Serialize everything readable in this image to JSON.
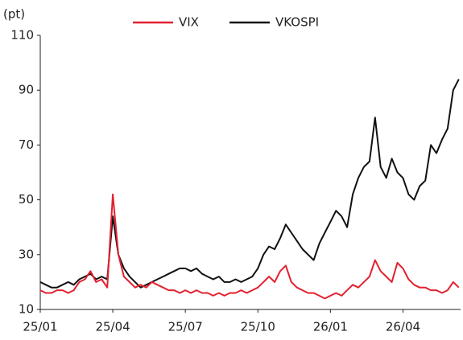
{
  "chart_data": {
    "type": "line",
    "y_unit": "(pt)",
    "categories": [
      "25/01",
      null,
      null,
      null,
      null,
      null,
      null,
      null,
      null,
      null,
      null,
      null,
      null,
      "25/04",
      null,
      null,
      null,
      null,
      null,
      null,
      null,
      null,
      null,
      null,
      null,
      null,
      "25/07",
      null,
      null,
      null,
      null,
      null,
      null,
      null,
      null,
      null,
      null,
      null,
      null,
      "25/10",
      null,
      null,
      null,
      null,
      null,
      null,
      null,
      null,
      null,
      null,
      null,
      null,
      "26/01",
      null,
      null,
      null,
      null,
      null,
      null,
      null,
      null,
      null,
      null,
      null,
      null,
      "26/04",
      null,
      null,
      null,
      null,
      null,
      null,
      null,
      null,
      null,
      null
    ],
    "series": [
      {
        "name": "VIX",
        "color": "#e3202f",
        "values": [
          17,
          16,
          16,
          17,
          17,
          16,
          17,
          20,
          21,
          24,
          20,
          21,
          18,
          52,
          30,
          22,
          20,
          18,
          19,
          18,
          20,
          19,
          18,
          17,
          17,
          16,
          17,
          16,
          17,
          16,
          16,
          15,
          16,
          15,
          16,
          16,
          17,
          16,
          17,
          18,
          20,
          22,
          20,
          24,
          26,
          20,
          18,
          17,
          16,
          16,
          15,
          14,
          15,
          16,
          15,
          17,
          19,
          18,
          20,
          22,
          28,
          24,
          22,
          20,
          27,
          25,
          21,
          19,
          18,
          18,
          17,
          17,
          16,
          17,
          20,
          18
        ]
      },
      {
        "name": "VKOSPI",
        "color": "#111111",
        "values": [
          20,
          19,
          18,
          18,
          19,
          20,
          19,
          21,
          22,
          23,
          21,
          22,
          21,
          44,
          30,
          25,
          22,
          20,
          18,
          19,
          20,
          21,
          22,
          23,
          24,
          25,
          25,
          24,
          25,
          23,
          22,
          21,
          22,
          20,
          20,
          21,
          20,
          21,
          22,
          25,
          30,
          33,
          32,
          36,
          41,
          38,
          35,
          32,
          30,
          28,
          34,
          38,
          42,
          46,
          44,
          40,
          52,
          58,
          62,
          64,
          80,
          62,
          58,
          65,
          60,
          58,
          52,
          50,
          55,
          57,
          70,
          67,
          72,
          76,
          90,
          94
        ]
      }
    ],
    "ylim": [
      10,
      110
    ],
    "yticks": [
      10,
      30,
      50,
      70,
      90,
      110
    ],
    "grid": false
  }
}
